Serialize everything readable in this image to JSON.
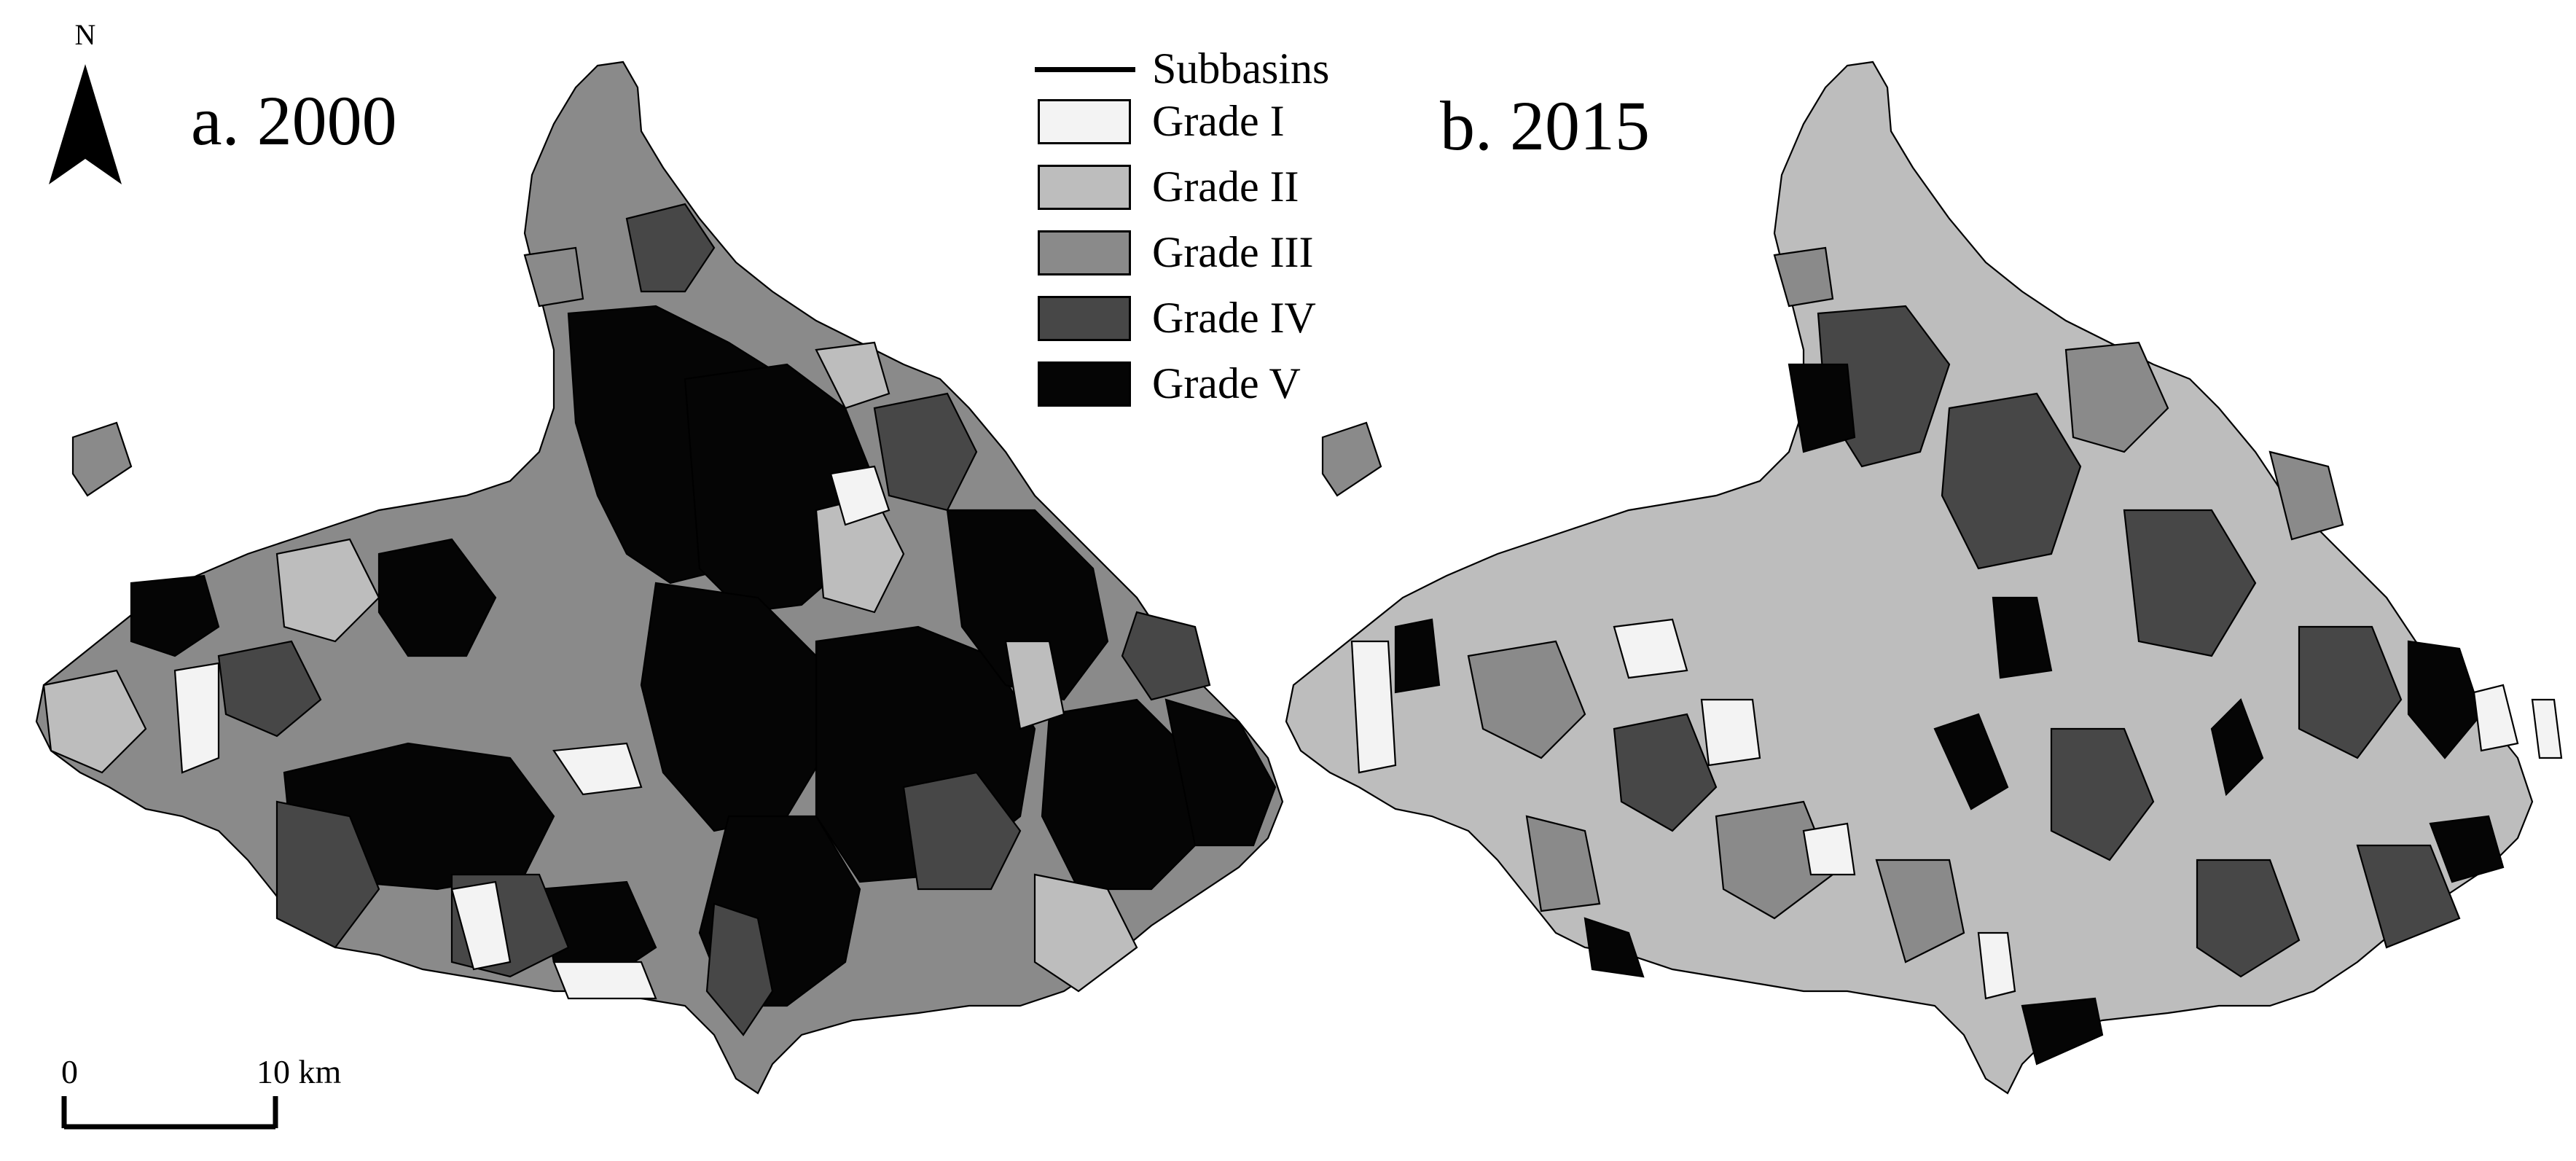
{
  "panels": [
    {
      "id": "a",
      "title": "a. 2000"
    },
    {
      "id": "b",
      "title": "b. 2015"
    }
  ],
  "north_arrow": {
    "label": "N"
  },
  "legend": {
    "line_item": {
      "label": "Subbasins"
    },
    "items": [
      {
        "label": "Grade I",
        "color": "#f3f3f3"
      },
      {
        "label": "Grade II",
        "color": "#bdbdbd"
      },
      {
        "label": "Grade III",
        "color": "#8a8a8a"
      },
      {
        "label": "Grade IV",
        "color": "#474747"
      },
      {
        "label": "Grade V",
        "color": "#050505"
      }
    ]
  },
  "scale_bar": {
    "start_label": "0",
    "end_label": "10 km"
  }
}
